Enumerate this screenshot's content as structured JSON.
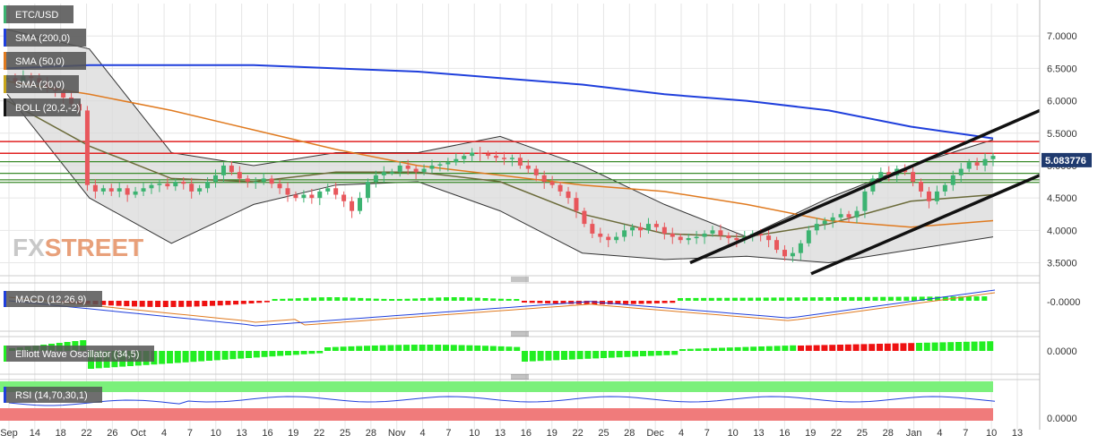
{
  "colors": {
    "up": "#3cb371",
    "down": "#e8575c",
    "sma200": "#1f3fdc",
    "sma50": "#e07a1f",
    "sma20": "#6b6b3a",
    "boll": "#333333",
    "boll_fill": "#d9d9d9",
    "resistance": "#e02020",
    "support": "#3a8a2a",
    "channel": "#111111",
    "price_tag": "#1f3a6e",
    "hist_up": "#22ee22",
    "hist_down": "#ee1111",
    "rsi_over": "#7bf07b",
    "rsi_under": "#f07b7b",
    "rsi_line": "#1f3fdc",
    "macd_line": "#1f3fdc",
    "signal_line": "#e07a1f"
  },
  "watermark": {
    "fx": "FX",
    "street": "STREET"
  },
  "legend": [
    {
      "label": "ETC/USD",
      "swatch": "#3cb371"
    },
    {
      "label": "SMA (200,0)",
      "swatch": "#1f3fdc"
    },
    {
      "label": "SMA (50,0)",
      "swatch": "#e07a1f"
    },
    {
      "label": "SMA (20,0)",
      "swatch": "#c8a51a"
    },
    {
      "label": "BOLL (20,2,-2)",
      "swatch": "#111111"
    }
  ],
  "indicators": {
    "macd_label": "MACD (12,26,9)",
    "macd_tick": "-0.0000",
    "ewo_label": "Elliott Wave Oscillator (34,5)",
    "ewo_tick": "0.0000",
    "rsi_label": "RSI (14,70,30,1)",
    "rsi_tick": "0.0000"
  },
  "chart_data": {
    "type": "candlestick",
    "pair": "ETC/USD",
    "ylim": [
      3.3,
      7.5
    ],
    "y_ticks": [
      "7.0000",
      "6.5000",
      "6.0000",
      "5.5000",
      "5.0000",
      "4.5000",
      "4.0000",
      "3.5000"
    ],
    "current_price": "5.083776",
    "current_value": 5.083776,
    "x_labels": [
      "Sep",
      "14",
      "18",
      "22",
      "26",
      "Oct",
      "4",
      "7",
      "10",
      "13",
      "16",
      "19",
      "22",
      "25",
      "28",
      "Nov",
      "4",
      "7",
      "10",
      "13",
      "16",
      "19",
      "22",
      "25",
      "28",
      "Dec",
      "4",
      "7",
      "10",
      "13",
      "16",
      "19",
      "22",
      "25",
      "28",
      "Jan",
      "4",
      "7",
      "10",
      "13"
    ],
    "horizontal_levels": {
      "resistance": [
        5.37,
        5.19
      ],
      "support": [
        5.06,
        4.88,
        4.78,
        4.74
      ]
    },
    "candles": [
      6.35,
      6.3,
      6.38,
      6.35,
      6.28,
      6.2,
      6.15,
      6.05,
      5.95,
      5.85,
      4.7,
      4.6,
      4.65,
      4.6,
      4.65,
      4.55,
      4.6,
      4.65,
      4.7,
      4.72,
      4.68,
      4.75,
      4.72,
      4.6,
      4.65,
      4.75,
      4.85,
      5.0,
      4.9,
      4.8,
      4.75,
      4.75,
      4.8,
      4.72,
      4.65,
      4.55,
      4.5,
      4.55,
      4.5,
      4.6,
      4.65,
      4.55,
      4.45,
      4.3,
      4.5,
      4.75,
      4.85,
      4.9,
      4.9,
      5.0,
      4.95,
      4.9,
      4.95,
      5.0,
      5.02,
      5.05,
      5.1,
      5.15,
      5.2,
      5.18,
      5.15,
      5.12,
      5.1,
      5.12,
      5.0,
      4.95,
      4.85,
      4.75,
      4.7,
      4.6,
      4.5,
      4.3,
      4.1,
      3.95,
      3.9,
      3.85,
      3.9,
      4.0,
      4.05,
      4.0,
      4.1,
      4.05,
      3.95,
      3.9,
      3.85,
      3.88,
      3.9,
      3.95,
      4.0,
      3.92,
      3.88,
      3.85,
      3.9,
      3.95,
      3.92,
      3.85,
      3.7,
      3.6,
      3.65,
      3.8,
      4.0,
      4.1,
      4.15,
      4.2,
      4.25,
      4.2,
      4.3,
      4.6,
      4.8,
      4.9,
      4.85,
      4.95,
      4.9,
      4.75,
      4.6,
      4.45,
      4.6,
      4.7,
      4.85,
      4.95,
      5.05,
      5.0,
      5.1,
      5.15
    ],
    "sma200": [
      6.5,
      6.55,
      6.55,
      6.55,
      6.5,
      6.45,
      6.35,
      6.25,
      6.1,
      6.0,
      5.85,
      5.6,
      5.42
    ],
    "sma50": [
      6.3,
      6.1,
      5.85,
      5.55,
      5.25,
      5.0,
      4.85,
      4.7,
      4.6,
      4.4,
      4.15,
      4.05,
      4.15
    ],
    "sma20": [
      6.0,
      5.3,
      4.8,
      4.75,
      4.9,
      4.9,
      4.75,
      4.25,
      3.95,
      3.9,
      4.1,
      4.45,
      4.55
    ],
    "boll_upper": [
      7.1,
      6.8,
      5.2,
      5.0,
      5.2,
      5.2,
      5.45,
      5.0,
      4.4,
      3.9,
      4.5,
      5.0,
      5.4
    ],
    "boll_lower": [
      6.1,
      4.5,
      3.8,
      4.4,
      4.7,
      4.75,
      4.3,
      3.65,
      3.55,
      3.6,
      3.5,
      3.7,
      3.9
    ],
    "channel_upper": {
      "from": [
        "Dec",
        3.5
      ],
      "to": [
        "Jan 13",
        5.85
      ]
    },
    "channel_lower": {
      "from": [
        "Dec 16",
        3.4
      ],
      "to": [
        "Jan 13",
        4.85
      ]
    }
  }
}
